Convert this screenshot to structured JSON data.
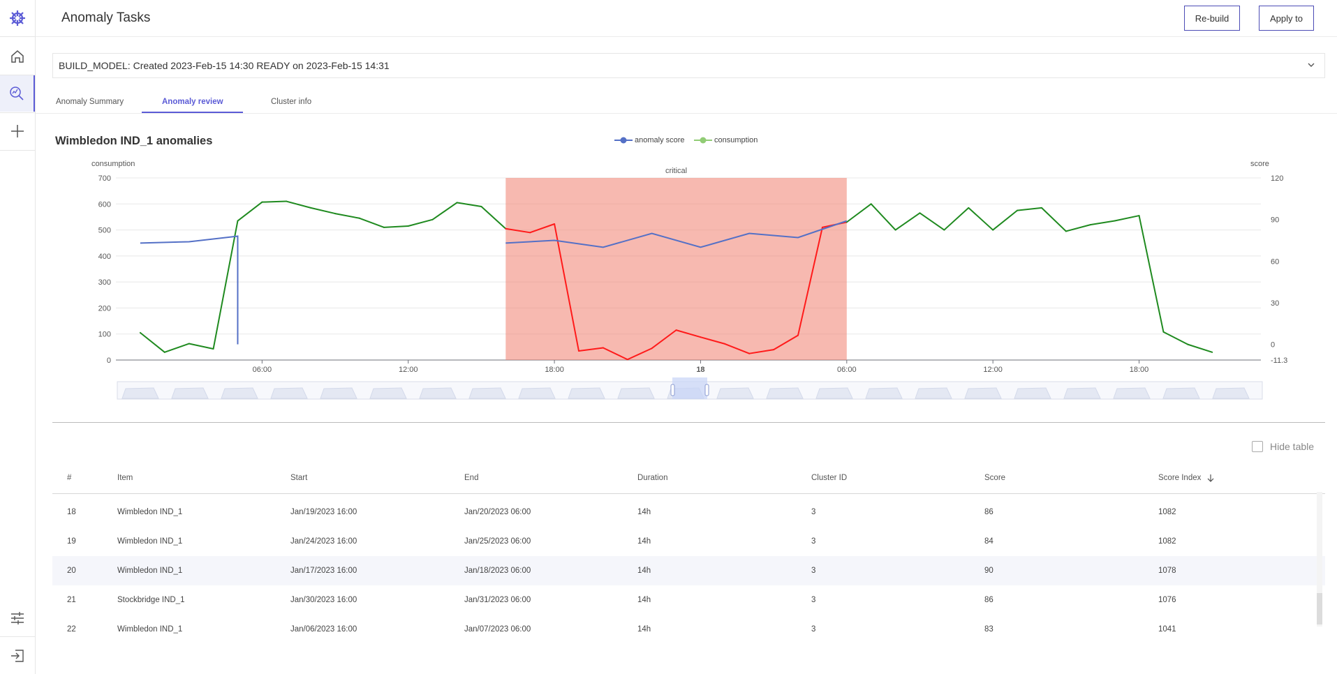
{
  "sidebar": {
    "items": [
      {
        "icon": "brand-logo-icon"
      },
      {
        "icon": "home-icon"
      },
      {
        "icon": "anomaly-search-icon",
        "active": true
      },
      {
        "icon": "plus-icon"
      },
      {
        "icon": "sliders-icon"
      },
      {
        "icon": "logout-icon"
      }
    ]
  },
  "header": {
    "title": "Anomaly Tasks",
    "rebuild_label": "Re-build",
    "apply_label": "Apply to"
  },
  "build": {
    "status": "BUILD_MODEL: Created 2023-Feb-15 14:30 READY on 2023-Feb-15 14:31"
  },
  "tabs": [
    {
      "label": "Anomaly Summary"
    },
    {
      "label": "Anomaly review",
      "active": true
    },
    {
      "label": "Cluster info"
    }
  ],
  "chart": {
    "title": "Wimbledon IND_1 anomalies",
    "legend": [
      {
        "name": "anomaly score",
        "color": "#5470c6"
      },
      {
        "name": "consumption",
        "color": "#91cc75"
      }
    ],
    "left_axis_label": "consumption",
    "right_axis_label": "score",
    "band_label": "critical",
    "left_ticks": [
      "700",
      "600",
      "500",
      "400",
      "300",
      "200",
      "100",
      "0"
    ],
    "right_ticks": [
      "120",
      "90",
      "60",
      "30",
      "0",
      "-11.3"
    ],
    "x_ticks": [
      "06:00",
      "12:00",
      "18:00",
      "18",
      "06:00",
      "12:00",
      "18:00"
    ]
  },
  "chart_data": {
    "type": "line",
    "title": "Wimbledon IND_1 anomalies",
    "ylabel": "consumption",
    "y2label": "score",
    "ylim": [
      0,
      700
    ],
    "y2lim": [
      -11.3,
      120
    ],
    "x_unit": "hours from Jan 17 00:00",
    "highlight_band": {
      "label": "critical",
      "color": "#f08070",
      "x_start": 16,
      "x_end": 30
    },
    "series": [
      {
        "name": "consumption",
        "axis": "left",
        "color": "#1f8a1f",
        "points": [
          [
            1,
            105
          ],
          [
            2,
            30
          ],
          [
            3,
            63
          ],
          [
            4,
            43
          ],
          [
            5,
            535
          ],
          [
            6,
            607
          ],
          [
            7,
            610
          ],
          [
            8,
            585
          ],
          [
            9,
            563
          ],
          [
            10,
            545
          ],
          [
            11,
            510
          ],
          [
            12,
            515
          ],
          [
            13,
            540
          ],
          [
            14,
            605
          ],
          [
            15,
            590
          ],
          [
            16,
            505
          ],
          [
            17,
            490
          ],
          [
            18,
            523
          ],
          [
            19,
            35
          ],
          [
            20,
            47
          ],
          [
            21,
            2
          ],
          [
            22,
            45
          ],
          [
            23,
            115
          ],
          [
            24,
            88
          ],
          [
            25,
            62
          ],
          [
            26,
            25
          ],
          [
            27,
            40
          ],
          [
            28,
            95
          ],
          [
            29,
            510
          ],
          [
            30,
            530
          ],
          [
            31,
            600
          ],
          [
            32,
            500
          ],
          [
            33,
            565
          ],
          [
            34,
            500
          ],
          [
            35,
            585
          ],
          [
            36,
            500
          ],
          [
            37,
            575
          ],
          [
            38,
            585
          ],
          [
            39,
            495
          ],
          [
            40,
            520
          ],
          [
            41,
            535
          ],
          [
            42,
            555
          ],
          [
            43,
            108
          ],
          [
            44,
            60
          ],
          [
            45,
            30
          ]
        ]
      },
      {
        "name": "anomaly score",
        "axis": "right",
        "color": "#5470c6",
        "segments": [
          [
            [
              1,
              73
            ],
            [
              3,
              74
            ],
            [
              5,
              78
            ],
            [
              5,
              0
            ]
          ],
          [
            [
              16,
              73
            ],
            [
              18,
              75
            ],
            [
              20,
              70
            ],
            [
              22,
              80
            ],
            [
              24,
              70
            ],
            [
              26,
              80
            ],
            [
              28,
              77
            ],
            [
              30,
              89
            ]
          ]
        ]
      }
    ]
  },
  "table": {
    "hide_label": "Hide table",
    "columns": [
      "#",
      "Item",
      "Start",
      "End",
      "Duration",
      "Cluster ID",
      "Score",
      "Score Index"
    ],
    "rows": [
      {
        "n": "18",
        "item": "Wimbledon IND_1",
        "start": "Jan/19/2023 16:00",
        "end": "Jan/20/2023 06:00",
        "duration": "14h",
        "cluster": "3",
        "score": "86",
        "index": "1082"
      },
      {
        "n": "19",
        "item": "Wimbledon IND_1",
        "start": "Jan/24/2023 16:00",
        "end": "Jan/25/2023 06:00",
        "duration": "14h",
        "cluster": "3",
        "score": "84",
        "index": "1082"
      },
      {
        "n": "20",
        "item": "Wimbledon IND_1",
        "start": "Jan/17/2023 16:00",
        "end": "Jan/18/2023 06:00",
        "duration": "14h",
        "cluster": "3",
        "score": "90",
        "index": "1078",
        "highlight": true
      },
      {
        "n": "21",
        "item": "Stockbridge IND_1",
        "start": "Jan/30/2023 16:00",
        "end": "Jan/31/2023 06:00",
        "duration": "14h",
        "cluster": "3",
        "score": "86",
        "index": "1076"
      },
      {
        "n": "22",
        "item": "Wimbledon IND_1",
        "start": "Jan/06/2023 16:00",
        "end": "Jan/07/2023 06:00",
        "duration": "14h",
        "cluster": "3",
        "score": "83",
        "index": "1041"
      }
    ]
  }
}
